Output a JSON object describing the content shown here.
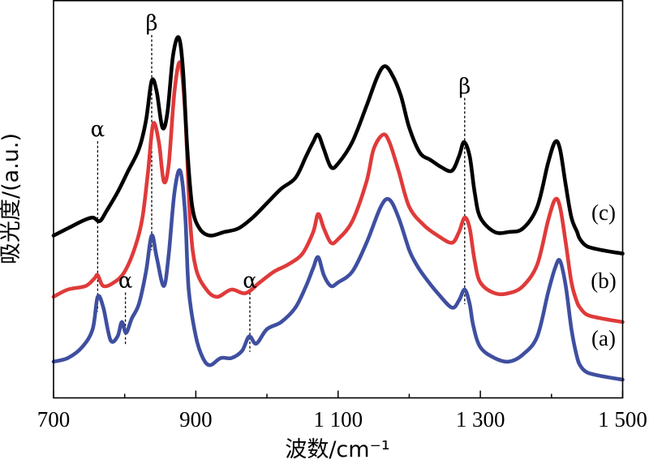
{
  "chart_data": {
    "type": "line",
    "title": "",
    "xlabel": "波数/cm⁻¹",
    "ylabel": "吸光度/(a.u.)",
    "xlim": [
      700,
      1500
    ],
    "ylim": [
      0,
      1
    ],
    "x_ticks": [
      700,
      900,
      1100,
      1300,
      1500
    ],
    "x_tick_labels": [
      "700",
      "900",
      "1 100",
      "1 300",
      "1 500"
    ],
    "grid": false,
    "series": [
      {
        "name": "(a)",
        "color": "#3f4fa0",
        "x": [
          700,
          720,
          740,
          755,
          762,
          770,
          780,
          790,
          796,
          802,
          810,
          820,
          830,
          838,
          845,
          855,
          862,
          870,
          878,
          885,
          890,
          900,
          910,
          920,
          935,
          950,
          965,
          975,
          985,
          1000,
          1020,
          1040,
          1055,
          1065,
          1072,
          1080,
          1090,
          1100,
          1120,
          1140,
          1160,
          1172,
          1185,
          1200,
          1210,
          1220,
          1240,
          1260,
          1270,
          1278,
          1285,
          1290,
          1300,
          1320,
          1340,
          1360,
          1380,
          1395,
          1405,
          1412,
          1420,
          1428,
          1435,
          1440,
          1450,
          1470,
          1500
        ],
        "values": [
          0.05,
          0.06,
          0.09,
          0.14,
          0.23,
          0.2,
          0.11,
          0.12,
          0.16,
          0.13,
          0.17,
          0.21,
          0.3,
          0.4,
          0.34,
          0.26,
          0.35,
          0.52,
          0.58,
          0.46,
          0.25,
          0.12,
          0.06,
          0.04,
          0.06,
          0.06,
          0.08,
          0.12,
          0.1,
          0.14,
          0.16,
          0.2,
          0.26,
          0.31,
          0.34,
          0.29,
          0.26,
          0.27,
          0.3,
          0.38,
          0.48,
          0.5,
          0.45,
          0.36,
          0.32,
          0.29,
          0.24,
          0.2,
          0.22,
          0.25,
          0.21,
          0.15,
          0.09,
          0.06,
          0.05,
          0.07,
          0.12,
          0.24,
          0.31,
          0.33,
          0.26,
          0.14,
          0.07,
          0.04,
          0.02,
          0.01,
          0.0
        ]
      },
      {
        "name": "(b)",
        "color": "#e03a3a",
        "x": [
          700,
          720,
          745,
          757,
          762,
          770,
          785,
          800,
          815,
          825,
          833,
          840,
          848,
          855,
          862,
          870,
          878,
          885,
          892,
          900,
          915,
          930,
          950,
          970,
          990,
          1010,
          1030,
          1050,
          1065,
          1072,
          1080,
          1090,
          1100,
          1120,
          1140,
          1150,
          1163,
          1172,
          1185,
          1200,
          1220,
          1240,
          1260,
          1270,
          1278,
          1285,
          1292,
          1300,
          1320,
          1340,
          1360,
          1380,
          1395,
          1405,
          1412,
          1420,
          1428,
          1435,
          1440,
          1450,
          1470,
          1500
        ],
        "values": [
          0.23,
          0.25,
          0.26,
          0.28,
          0.29,
          0.26,
          0.27,
          0.3,
          0.37,
          0.45,
          0.58,
          0.71,
          0.66,
          0.55,
          0.6,
          0.8,
          0.88,
          0.74,
          0.44,
          0.31,
          0.25,
          0.23,
          0.25,
          0.24,
          0.27,
          0.3,
          0.32,
          0.35,
          0.41,
          0.46,
          0.42,
          0.38,
          0.39,
          0.44,
          0.55,
          0.64,
          0.68,
          0.66,
          0.58,
          0.48,
          0.43,
          0.4,
          0.38,
          0.41,
          0.45,
          0.42,
          0.33,
          0.27,
          0.24,
          0.24,
          0.26,
          0.32,
          0.44,
          0.5,
          0.48,
          0.38,
          0.27,
          0.22,
          0.2,
          0.18,
          0.17,
          0.16
        ]
      },
      {
        "name": "(c)",
        "color": "#000000",
        "x": [
          700,
          720,
          740,
          755,
          765,
          775,
          790,
          805,
          820,
          830,
          838,
          845,
          853,
          860,
          868,
          876,
          882,
          888,
          895,
          905,
          920,
          940,
          960,
          980,
          1000,
          1020,
          1040,
          1055,
          1065,
          1072,
          1080,
          1090,
          1100,
          1120,
          1140,
          1155,
          1165,
          1175,
          1188,
          1200,
          1215,
          1230,
          1245,
          1260,
          1270,
          1277,
          1285,
          1292,
          1300,
          1320,
          1340,
          1360,
          1380,
          1395,
          1405,
          1412,
          1420,
          1428,
          1436,
          1440,
          1450,
          1470,
          1500
        ],
        "values": [
          0.4,
          0.42,
          0.44,
          0.45,
          0.44,
          0.47,
          0.52,
          0.58,
          0.64,
          0.72,
          0.83,
          0.8,
          0.7,
          0.74,
          0.9,
          0.95,
          0.86,
          0.64,
          0.48,
          0.42,
          0.4,
          0.41,
          0.42,
          0.45,
          0.49,
          0.53,
          0.56,
          0.62,
          0.66,
          0.68,
          0.64,
          0.59,
          0.6,
          0.66,
          0.76,
          0.84,
          0.87,
          0.85,
          0.79,
          0.7,
          0.63,
          0.61,
          0.59,
          0.58,
          0.62,
          0.66,
          0.62,
          0.52,
          0.45,
          0.41,
          0.41,
          0.42,
          0.48,
          0.6,
          0.66,
          0.64,
          0.54,
          0.45,
          0.41,
          0.39,
          0.37,
          0.36,
          0.35
        ]
      }
    ],
    "series_labels": [
      "(a)",
      "(b)",
      "(c)"
    ],
    "annotations": [
      {
        "text": "α",
        "x": 762,
        "y": 0.68
      },
      {
        "text": "α",
        "x": 801,
        "y": 0.26
      },
      {
        "text": "α",
        "x": 976,
        "y": 0.26
      },
      {
        "text": "β",
        "x": 838,
        "y": 0.975
      },
      {
        "text": "β",
        "x": 1278,
        "y": 0.8
      }
    ]
  }
}
